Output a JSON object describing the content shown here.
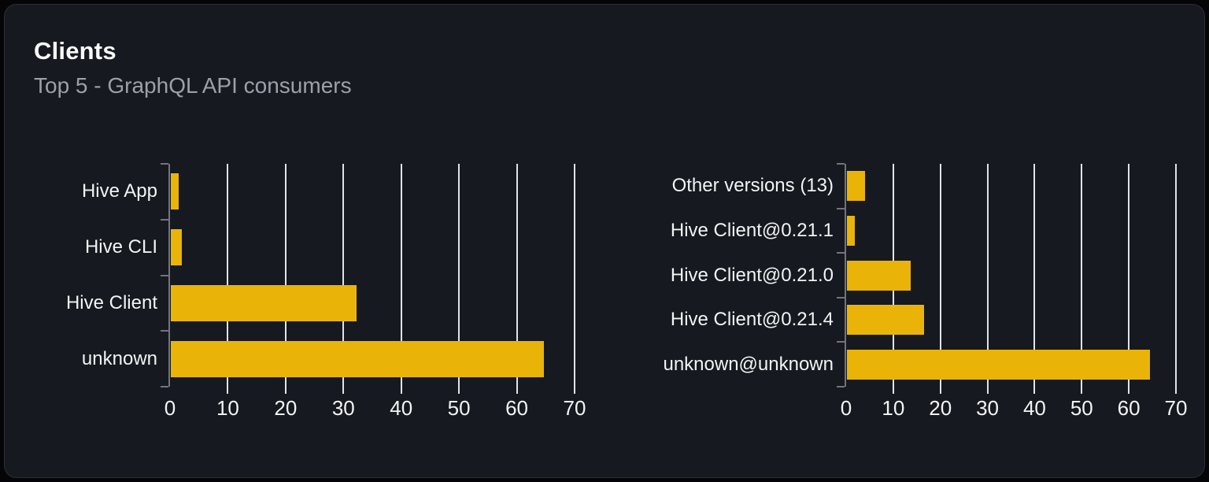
{
  "card": {
    "title": "Clients",
    "subtitle": "Top 5 - GraphQL API consumers"
  },
  "colors": {
    "page_bg": "#050507",
    "card_bg": "#16191f",
    "card_border": "#2b2e36",
    "bar": "#eab308",
    "gridline": "#dfe3ec",
    "axis": "#70747c",
    "title": "#fafafa",
    "subtitle": "#9aa1ab",
    "label": "#f2f3f4"
  },
  "chart_data": [
    {
      "type": "bar",
      "orientation": "horizontal",
      "name": "clients-by-name",
      "categories": [
        "Hive App",
        "Hive CLI",
        "Hive Client",
        "unknown"
      ],
      "values": [
        1.3,
        1.9,
        32.2,
        64.6
      ],
      "xlim": [
        0,
        70
      ],
      "xticks": [
        0,
        10,
        20,
        30,
        40,
        50,
        60,
        70
      ],
      "grid": true,
      "legend": false,
      "bar_color": "#eab308"
    },
    {
      "type": "bar",
      "orientation": "horizontal",
      "name": "clients-by-version",
      "categories": [
        "Other versions (13)",
        "Hive Client@0.21.1",
        "Hive Client@0.21.0",
        "Hive Client@0.21.4",
        "unknown@unknown"
      ],
      "values": [
        3.8,
        1.7,
        13.6,
        16.3,
        64.3
      ],
      "xlim": [
        0,
        70
      ],
      "xticks": [
        0,
        10,
        20,
        30,
        40,
        50,
        60,
        70
      ],
      "grid": true,
      "legend": false,
      "bar_color": "#eab308"
    }
  ]
}
